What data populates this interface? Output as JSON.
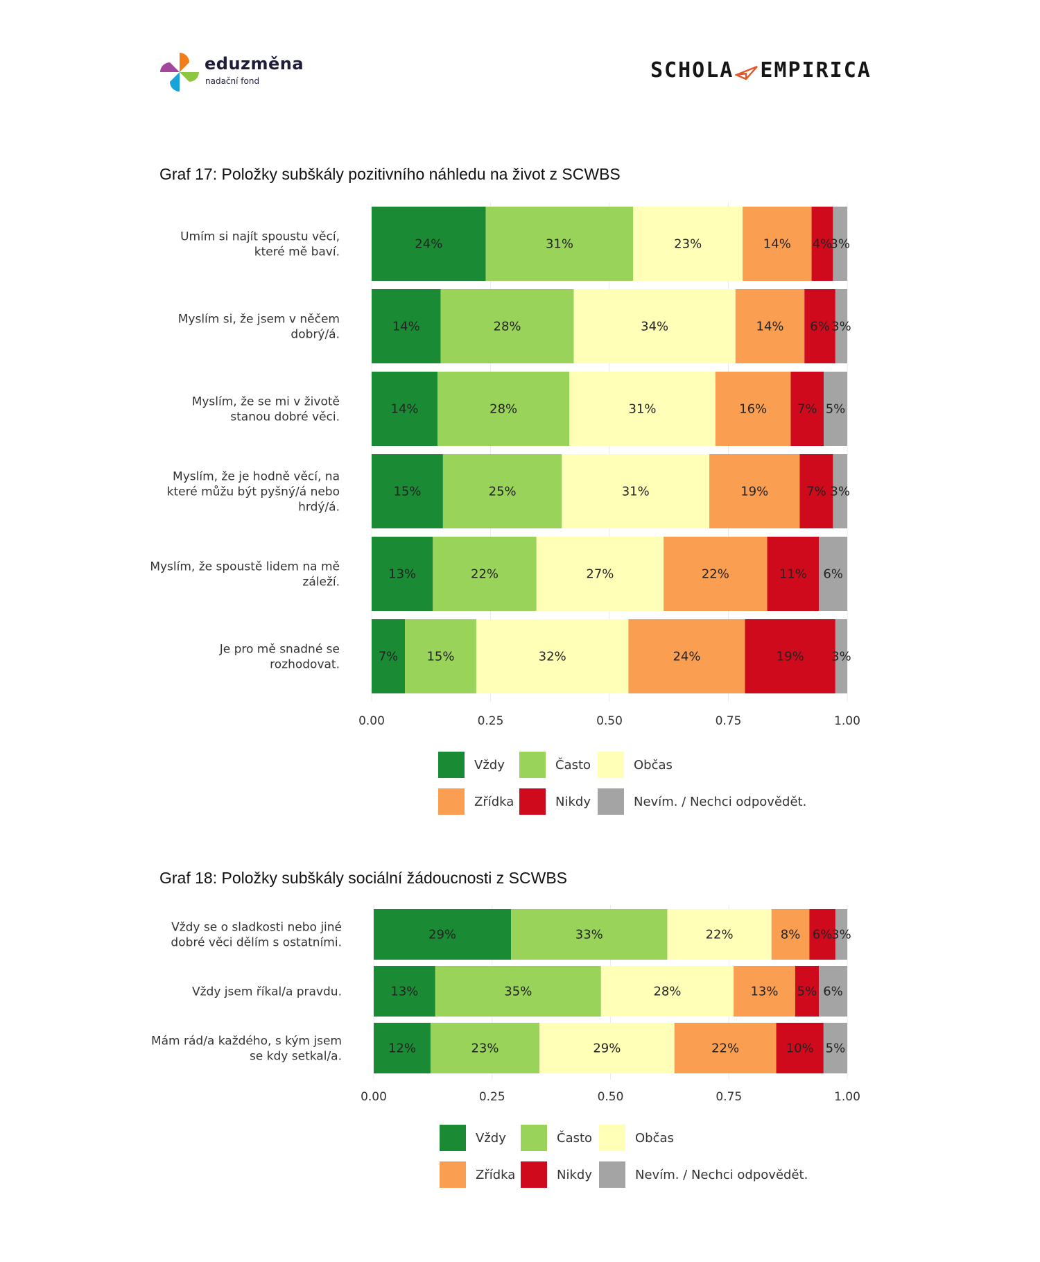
{
  "header": {
    "left_logo": {
      "brand": "eduzměna",
      "subtitle": "nadační fond"
    },
    "right_logo": {
      "left_word": "SCHOLA",
      "right_word": "EMPIRICA"
    }
  },
  "legend": {
    "items": [
      {
        "label": "Vždy",
        "color": "#1a8a34"
      },
      {
        "label": "Často",
        "color": "#9ad35a"
      },
      {
        "label": "Občas",
        "color": "#ffffb8"
      },
      {
        "label": "Zřídka",
        "color": "#fa9e51"
      },
      {
        "label": "Nikdy",
        "color": "#cf0a1d"
      },
      {
        "label": "Nevím. / Nechci odpovědět.",
        "color": "#a4a4a4"
      }
    ]
  },
  "chart_data": [
    {
      "type": "bar",
      "orientation": "horizontal",
      "stacked": true,
      "title": "Graf 17: Položky subškály pozitivního náhledu na život z SCWBS",
      "xlim": [
        0,
        1
      ],
      "xticks": [
        "0.00",
        "0.25",
        "0.50",
        "0.75",
        "1.00"
      ],
      "legend_position": "bottom",
      "categories": [
        [
          "Umím si najít spoustu věcí,",
          "které mě baví."
        ],
        [
          "Myslím si, že jsem v něčem",
          "dobrý/á."
        ],
        [
          "Myslím, že se mi v životě",
          "stanou dobré věci."
        ],
        [
          "Myslím, že je hodně věcí, na",
          "které můžu být pyšný/á nebo",
          "hrdý/á."
        ],
        [
          "Myslím, že spoustě lidem na mě",
          "záleží."
        ],
        [
          "Je pro mě snadné se",
          "rozhodovat."
        ]
      ],
      "series": [
        {
          "name": "Vždy",
          "values": [
            0.24,
            0.145,
            0.14,
            0.15,
            0.13,
            0.07
          ],
          "labels": [
            "24%",
            "14%",
            "14%",
            "15%",
            "13%",
            "7%"
          ]
        },
        {
          "name": "Často",
          "values": [
            0.31,
            0.28,
            0.28,
            0.25,
            0.22,
            0.15
          ],
          "labels": [
            "31%",
            "28%",
            "28%",
            "25%",
            "22%",
            "15%"
          ]
        },
        {
          "name": "Občas",
          "values": [
            0.23,
            0.34,
            0.31,
            0.31,
            0.27,
            0.32
          ],
          "labels": [
            "23%",
            "34%",
            "31%",
            "31%",
            "27%",
            "32%"
          ]
        },
        {
          "name": "Zřídka",
          "values": [
            0.145,
            0.145,
            0.16,
            0.19,
            0.22,
            0.245
          ],
          "labels": [
            "14%",
            "14%",
            "16%",
            "19%",
            "22%",
            "24%"
          ]
        },
        {
          "name": "Nikdy",
          "values": [
            0.045,
            0.065,
            0.07,
            0.07,
            0.11,
            0.19
          ],
          "labels": [
            "4%",
            "6%",
            "7%",
            "7%",
            "11%",
            "19%"
          ]
        },
        {
          "name": "Nevím. / Nechci odpovědět.",
          "values": [
            0.03,
            0.025,
            0.05,
            0.03,
            0.06,
            0.025
          ],
          "labels": [
            "3%",
            "3%",
            "5%",
            "3%",
            "6%",
            "3%"
          ]
        }
      ]
    },
    {
      "type": "bar",
      "orientation": "horizontal",
      "stacked": true,
      "title": "Graf 18: Položky subškály sociální žádoucnosti z SCWBS",
      "xlim": [
        0,
        1
      ],
      "xticks": [
        "0.00",
        "0.25",
        "0.50",
        "0.75",
        "1.00"
      ],
      "legend_position": "bottom",
      "categories": [
        [
          "Vždy se o sladkosti nebo jiné",
          "dobré věci dělím s ostatními."
        ],
        [
          "Vždy jsem říkal/a pravdu."
        ],
        [
          "Mám rád/a každého, s kým jsem",
          "se kdy setkal/a."
        ]
      ],
      "series": [
        {
          "name": "Vždy",
          "values": [
            0.29,
            0.13,
            0.12
          ],
          "labels": [
            "29%",
            "13%",
            "12%"
          ]
        },
        {
          "name": "Často",
          "values": [
            0.33,
            0.35,
            0.23
          ],
          "labels": [
            "33%",
            "35%",
            "23%"
          ]
        },
        {
          "name": "Občas",
          "values": [
            0.22,
            0.28,
            0.285
          ],
          "labels": [
            "22%",
            "28%",
            "29%"
          ]
        },
        {
          "name": "Zřídka",
          "values": [
            0.08,
            0.13,
            0.215
          ],
          "labels": [
            "8%",
            "13%",
            "22%"
          ]
        },
        {
          "name": "Nikdy",
          "values": [
            0.055,
            0.05,
            0.1
          ],
          "labels": [
            "6%",
            "5%",
            "10%"
          ]
        },
        {
          "name": "Nevím. / Nechci odpovědět.",
          "values": [
            0.025,
            0.06,
            0.05
          ],
          "labels": [
            "3%",
            "6%",
            "5%"
          ]
        }
      ]
    }
  ]
}
